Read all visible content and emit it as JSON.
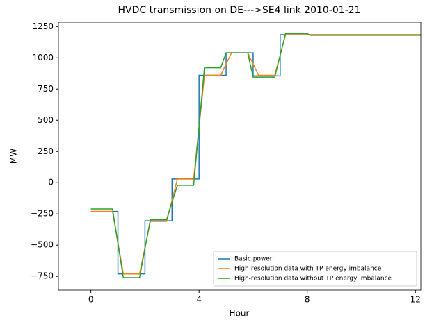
{
  "chart_data": {
    "type": "line",
    "title": "HVDC transmission on DE--->SE4 link 2010-01-21",
    "x_label": "Hour",
    "y_label": "MW",
    "xlim": [
      -1.2,
      12.2
    ],
    "ylim": [
      -860,
      1285
    ],
    "xticks": [
      0,
      4,
      8,
      12
    ],
    "yticks": [
      {
        "value": -750,
        "label": "−750"
      },
      {
        "value": -500,
        "label": "−500"
      },
      {
        "value": -250,
        "label": "−250"
      },
      0,
      250,
      500,
      750,
      1000,
      1250
    ],
    "legend": "lower right",
    "series": [
      {
        "name": "Basic power",
        "color": "#1f77b4",
        "x": [
          0,
          1,
          1,
          2,
          2,
          3,
          3,
          4,
          4,
          5,
          5,
          6,
          6,
          7,
          7,
          12.2
        ],
        "values": [
          -230,
          -230,
          -730,
          -730,
          -305,
          -305,
          30,
          30,
          860,
          860,
          1040,
          1040,
          855,
          855,
          1185,
          1185
        ]
      },
      {
        "name": "High-resolution data with TP energy imbalance",
        "color": "#ff7f0e",
        "x": [
          0,
          0.8,
          1.2,
          1.8,
          2.2,
          2.8,
          3.2,
          3.8,
          4.2,
          4.8,
          5.2,
          5.8,
          6.2,
          6.8,
          7.2,
          12.2
        ],
        "values": [
          -230,
          -230,
          -730,
          -730,
          -310,
          -310,
          30,
          30,
          860,
          860,
          1040,
          1040,
          860,
          860,
          1185,
          1185
        ]
      },
      {
        "name": "High-resolution data without TP energy imbalance",
        "color": "#2ca02c",
        "x": [
          0,
          0.8,
          1.2,
          1.8,
          2.2,
          2.8,
          3.2,
          3.8,
          4.2,
          4.8,
          5.0,
          5.8,
          6.0,
          6.8,
          7.2,
          8.0,
          8.1,
          12.2
        ],
        "values": [
          -210,
          -210,
          -760,
          -760,
          -295,
          -295,
          -20,
          -20,
          920,
          920,
          1040,
          1040,
          845,
          845,
          1195,
          1195,
          1180,
          1180
        ]
      }
    ]
  }
}
